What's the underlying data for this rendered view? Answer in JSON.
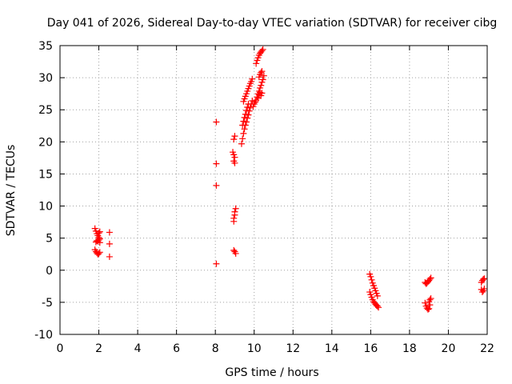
{
  "chart_data": {
    "type": "scatter",
    "title": "Day 041 of 2026, Sidereal Day-to-day VTEC variation (SDTVAR) for receiver cibg",
    "xlabel": "GPS time / hours",
    "ylabel": "SDTVAR / TECUs",
    "xlim": [
      0,
      22
    ],
    "ylim": [
      -10,
      35
    ],
    "xticks": [
      0,
      2,
      4,
      6,
      8,
      10,
      12,
      14,
      16,
      18,
      20,
      22
    ],
    "yticks": [
      -10,
      -5,
      0,
      5,
      10,
      15,
      20,
      25,
      30,
      35
    ],
    "grid": true,
    "marker": "+",
    "series": [
      {
        "name": "SDTVAR",
        "color": "#ff0000",
        "points": [
          [
            1.8,
            6.5
          ],
          [
            1.85,
            6.1
          ],
          [
            1.9,
            5.7
          ],
          [
            1.95,
            5.4
          ],
          [
            2.0,
            5.1
          ],
          [
            2.05,
            4.9
          ],
          [
            2.0,
            5.8
          ],
          [
            2.05,
            6.0
          ],
          [
            1.85,
            4.4
          ],
          [
            1.9,
            4.6
          ],
          [
            1.95,
            4.5
          ],
          [
            2.0,
            4.7
          ],
          [
            2.05,
            4.3
          ],
          [
            1.8,
            3.2
          ],
          [
            1.85,
            2.9
          ],
          [
            1.9,
            2.7
          ],
          [
            1.95,
            2.5
          ],
          [
            2.0,
            2.6
          ],
          [
            2.05,
            2.8
          ],
          [
            2.55,
            5.9
          ],
          [
            2.55,
            4.1
          ],
          [
            2.55,
            2.1
          ],
          [
            8.05,
            23.1
          ],
          [
            8.05,
            16.6
          ],
          [
            8.05,
            13.2
          ],
          [
            8.05,
            1.0
          ],
          [
            8.95,
            20.4
          ],
          [
            9.0,
            20.9
          ],
          [
            8.9,
            18.4
          ],
          [
            8.95,
            18.0
          ],
          [
            9.0,
            17.6
          ],
          [
            8.95,
            17.0
          ],
          [
            9.0,
            16.7
          ],
          [
            9.05,
            9.6
          ],
          [
            9.0,
            9.1
          ],
          [
            9.0,
            8.6
          ],
          [
            8.95,
            8.1
          ],
          [
            8.95,
            7.6
          ],
          [
            8.95,
            3.1
          ],
          [
            9.0,
            2.9
          ],
          [
            9.05,
            2.6
          ],
          [
            9.35,
            19.7
          ],
          [
            9.4,
            20.5
          ],
          [
            9.45,
            21.3
          ],
          [
            9.5,
            22.0
          ],
          [
            9.55,
            22.6
          ],
          [
            9.6,
            23.1
          ],
          [
            9.65,
            23.7
          ],
          [
            9.7,
            24.2
          ],
          [
            9.75,
            24.8
          ],
          [
            9.8,
            25.3
          ],
          [
            9.85,
            25.9
          ],
          [
            9.9,
            26.4
          ],
          [
            9.4,
            22.6
          ],
          [
            9.45,
            23.2
          ],
          [
            9.5,
            23.8
          ],
          [
            9.55,
            24.3
          ],
          [
            9.6,
            24.9
          ],
          [
            9.65,
            25.4
          ],
          [
            9.7,
            25.9
          ],
          [
            9.45,
            26.3
          ],
          [
            9.5,
            26.7
          ],
          [
            9.55,
            27.1
          ],
          [
            9.6,
            27.5
          ],
          [
            9.65,
            27.9
          ],
          [
            9.7,
            28.3
          ],
          [
            9.75,
            28.7
          ],
          [
            9.8,
            29.1
          ],
          [
            9.85,
            29.4
          ],
          [
            9.9,
            29.8
          ],
          [
            9.95,
            25.5
          ],
          [
            10.0,
            25.9
          ],
          [
            10.05,
            26.2
          ],
          [
            10.1,
            26.5
          ],
          [
            10.15,
            27.0
          ],
          [
            10.2,
            27.5
          ],
          [
            10.25,
            27.9
          ],
          [
            10.3,
            28.4
          ],
          [
            10.35,
            28.8
          ],
          [
            10.4,
            29.3
          ],
          [
            10.45,
            29.7
          ],
          [
            10.5,
            30.3
          ],
          [
            10.25,
            30.1
          ],
          [
            10.3,
            30.5
          ],
          [
            10.35,
            30.8
          ],
          [
            10.4,
            31.0
          ],
          [
            10.2,
            26.8
          ],
          [
            10.25,
            27.3
          ],
          [
            10.3,
            27.7
          ],
          [
            10.35,
            27.2
          ],
          [
            10.4,
            27.6
          ],
          [
            10.1,
            32.2
          ],
          [
            10.15,
            32.7
          ],
          [
            10.2,
            33.1
          ],
          [
            10.25,
            33.5
          ],
          [
            10.3,
            33.8
          ],
          [
            10.35,
            34.0
          ],
          [
            10.4,
            34.2
          ],
          [
            10.45,
            34.4
          ],
          [
            15.95,
            -0.6
          ],
          [
            16.0,
            -1.0
          ],
          [
            16.05,
            -1.5
          ],
          [
            16.1,
            -2.0
          ],
          [
            16.15,
            -2.4
          ],
          [
            16.2,
            -2.8
          ],
          [
            16.25,
            -3.2
          ],
          [
            16.3,
            -3.6
          ],
          [
            16.35,
            -4.0
          ],
          [
            15.95,
            -3.4
          ],
          [
            16.0,
            -3.8
          ],
          [
            16.05,
            -4.2
          ],
          [
            16.1,
            -4.6
          ],
          [
            16.15,
            -4.9
          ],
          [
            16.2,
            -5.1
          ],
          [
            16.25,
            -5.3
          ],
          [
            16.3,
            -5.5
          ],
          [
            16.35,
            -5.6
          ],
          [
            16.4,
            -5.8
          ],
          [
            18.8,
            -1.9
          ],
          [
            18.85,
            -2.1
          ],
          [
            18.9,
            -2.0
          ],
          [
            18.95,
            -1.8
          ],
          [
            19.0,
            -1.6
          ],
          [
            19.05,
            -1.4
          ],
          [
            19.1,
            -1.2
          ],
          [
            18.8,
            -5.1
          ],
          [
            18.85,
            -5.6
          ],
          [
            18.9,
            -5.9
          ],
          [
            18.95,
            -6.1
          ],
          [
            19.0,
            -6.0
          ],
          [
            19.05,
            -5.4
          ],
          [
            19.0,
            -4.9
          ],
          [
            19.05,
            -4.6
          ],
          [
            19.1,
            -4.4
          ],
          [
            21.7,
            -1.9
          ],
          [
            21.75,
            -1.6
          ],
          [
            21.8,
            -1.4
          ],
          [
            21.85,
            -1.3
          ],
          [
            21.7,
            -3.0
          ],
          [
            21.75,
            -3.4
          ],
          [
            21.8,
            -3.2
          ],
          [
            21.85,
            -2.9
          ]
        ]
      }
    ]
  }
}
